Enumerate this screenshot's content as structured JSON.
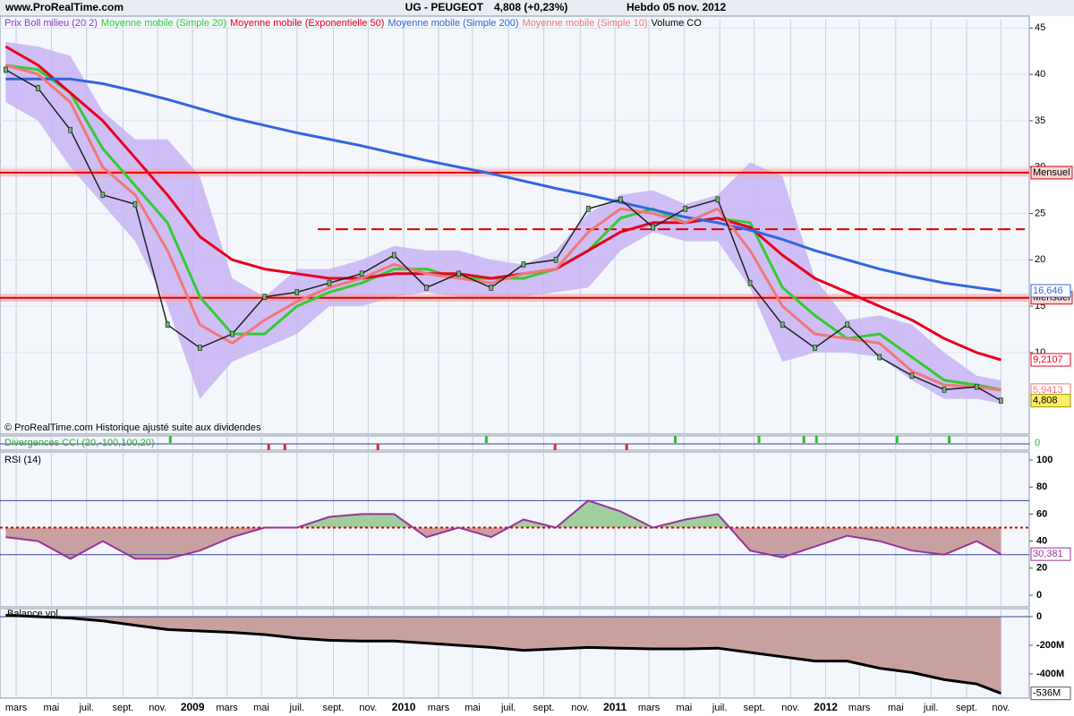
{
  "header": {
    "site": "www.ProRealTime.com",
    "symbol": "UG - PEUGEOT",
    "quote": "4,808 (+0,23%)",
    "period": "Hebdo  05 nov. 2012"
  },
  "chart_data": [
    {
      "type": "line",
      "x": [
        6,
        14,
        22,
        30,
        38,
        46,
        54,
        62,
        70,
        78,
        86,
        94,
        102,
        110,
        118,
        126,
        134,
        142,
        150,
        158,
        166,
        174,
        182,
        190,
        198,
        206,
        214,
        222,
        230,
        238,
        246,
        252
      ],
      "xlim": [
        4.6,
        259
      ],
      "xticks": [
        {
          "value": 8.6,
          "label": "mars"
        },
        {
          "value": 17.3,
          "label": "mai"
        },
        {
          "value": 26,
          "label": "juil."
        },
        {
          "value": 35,
          "label": "sept."
        },
        {
          "value": 43.6,
          "label": "nov."
        },
        {
          "value": 52.2,
          "label": "2009"
        },
        {
          "value": 60.7,
          "label": "mars"
        },
        {
          "value": 69.2,
          "label": "mai"
        },
        {
          "value": 78,
          "label": "juil."
        },
        {
          "value": 87,
          "label": "sept."
        },
        {
          "value": 95.6,
          "label": "nov."
        },
        {
          "value": 104.4,
          "label": "2010"
        },
        {
          "value": 113,
          "label": "mars"
        },
        {
          "value": 121.4,
          "label": "mai"
        },
        {
          "value": 130.3,
          "label": "juil."
        },
        {
          "value": 139,
          "label": "sept."
        },
        {
          "value": 148,
          "label": "nov."
        },
        {
          "value": 156.6,
          "label": "2011"
        },
        {
          "value": 165,
          "label": "mars"
        },
        {
          "value": 173.7,
          "label": "mai"
        },
        {
          "value": 182.5,
          "label": "juil."
        },
        {
          "value": 191,
          "label": "sept."
        },
        {
          "value": 200,
          "label": "nov."
        },
        {
          "value": 208.7,
          "label": "2012"
        },
        {
          "value": 217,
          "label": "mars"
        },
        {
          "value": 226,
          "label": "mai"
        },
        {
          "value": 234.7,
          "label": "juil."
        },
        {
          "value": 243.5,
          "label": "sept."
        },
        {
          "value": 252,
          "label": "nov."
        }
      ],
      "ylim": [
        1.2,
        45.9
      ],
      "yticks": [
        10,
        15,
        20,
        25,
        30,
        35,
        40,
        45
      ],
      "grid": true,
      "close": {
        "color": "#222222",
        "last_label": "4,808",
        "values": [
          40.5,
          38.5,
          34,
          27,
          26,
          13,
          10.5,
          12,
          16,
          16.5,
          17.5,
          18.5,
          20.5,
          17,
          18.5,
          17,
          19.5,
          20,
          25.5,
          26.5,
          23.5,
          25.5,
          26.5,
          17.5,
          13,
          10.5,
          13,
          9.5,
          7.5,
          6,
          6.3,
          4.808
        ]
      },
      "series": [
        {
          "name": "Prix Boll milieu (20 2)",
          "color": "#9933cc",
          "band_color": "#c8b4f4",
          "values": [
            41,
            40.5,
            38,
            32,
            28,
            24,
            16,
            12,
            12,
            15,
            16.5,
            17.5,
            19,
            19,
            18,
            18,
            18,
            19,
            21,
            24.5,
            25.5,
            24,
            24.5,
            24,
            17,
            14,
            11.5,
            12,
            9.5,
            7,
            6.5,
            6
          ],
          "upper": [
            43.5,
            43,
            42,
            36,
            33,
            33,
            29,
            18,
            16,
            19,
            19,
            20,
            21.5,
            21,
            21,
            20,
            19.5,
            21,
            25,
            27,
            27.5,
            26,
            27,
            30.5,
            29,
            18,
            13.5,
            14,
            13,
            10,
            7.5,
            7
          ],
          "lower": [
            37,
            35,
            30,
            26,
            22,
            15,
            5,
            9,
            10.5,
            12,
            15,
            15,
            16,
            16.5,
            16,
            16,
            16,
            16.5,
            17,
            21,
            23,
            22,
            22,
            17,
            9,
            10,
            10,
            9.5,
            7,
            5,
            5,
            4.5
          ]
        },
        {
          "name": "Moyenne mobile (Simple 20)",
          "color": "#33cc33",
          "values": [
            41,
            40.5,
            38,
            32,
            28,
            24,
            16,
            12,
            12,
            15,
            16.5,
            17.5,
            19,
            19,
            18,
            18,
            18,
            19,
            21,
            24.5,
            25.5,
            24,
            24.5,
            24,
            17,
            14,
            11.5,
            12,
            9.5,
            7,
            6.5,
            6
          ]
        },
        {
          "name": "Moyenne mobile (Exponentielle 50)",
          "color": "#e8001c",
          "last_label": "9,2107",
          "values": [
            43,
            41,
            38,
            35,
            31,
            27,
            22.5,
            20,
            19,
            18.5,
            18,
            18,
            18.5,
            18.5,
            18.5,
            18,
            18.5,
            19,
            21,
            23,
            24,
            24,
            24.5,
            23.5,
            20.5,
            18,
            16.5,
            15,
            13.5,
            11.5,
            10,
            9.2107
          ]
        },
        {
          "name": "Moyenne mobile (Simple 200)",
          "color": "#3366dd",
          "last_label": "16,646",
          "values": [
            39.5,
            39.5,
            39.5,
            39,
            38.2,
            37.3,
            36.3,
            35.3,
            34.5,
            33.7,
            33,
            32.3,
            31.5,
            30.7,
            30,
            29.3,
            28.5,
            27.7,
            27,
            26.2,
            25.4,
            24.6,
            24,
            23.2,
            22.2,
            21,
            20,
            19,
            18.2,
            17.5,
            17,
            16.646
          ]
        },
        {
          "name": "Moyenne mobile (Simple 10)",
          "color": "#f07878",
          "last_label": "5,9413",
          "values": [
            41,
            40,
            37,
            30,
            27,
            21,
            13,
            11,
            13.5,
            15.5,
            17,
            18,
            19.5,
            18.5,
            18,
            17.5,
            18.5,
            19,
            23,
            25.5,
            25,
            24,
            25.5,
            21,
            15,
            12,
            11.5,
            11,
            8,
            6.5,
            6.3,
            5.9413
          ]
        }
      ],
      "extra_legend": "Volume CO",
      "levels": [
        {
          "value": 29.4,
          "label": "Mensuel"
        },
        {
          "value": 15.9,
          "label": "Mensuel"
        }
      ],
      "dashed_levels": [
        23.3
      ],
      "note": "© ProRealTime.com Historique ajusté suite aux dividendes"
    },
    {
      "type": "signals",
      "title": "Divergences CCI (20,-100,100,20)",
      "bullish": [
        46.7,
        124.8,
        171.5,
        192.2,
        203.3,
        206.4,
        226.3,
        239.2
      ],
      "bull_color": "#33bb33",
      "bearish": [
        71,
        75,
        98,
        141.8,
        159.5
      ],
      "bear_color": "#cc3333",
      "level": 0
    },
    {
      "type": "line",
      "title": "RSI (14)",
      "color": "#993399",
      "ylim": [
        -8.6,
        106
      ],
      "yticks": [
        0,
        20,
        40,
        60,
        80,
        100
      ],
      "bands": [
        30,
        70
      ],
      "midline": 50,
      "above_color": "#9fcf9f",
      "below_color": "#c9a0a0",
      "last_label": "30,381",
      "values": [
        43,
        40,
        27,
        40,
        27,
        27,
        33,
        43,
        50,
        50,
        58,
        60,
        60,
        43,
        50,
        43,
        56,
        50,
        70,
        62,
        50,
        56,
        60,
        33,
        28,
        36,
        44,
        40,
        33,
        30,
        40,
        30.381
      ]
    },
    {
      "type": "area",
      "title": "Balance vol.",
      "color": "#000000",
      "fill": "#c9a0a0",
      "ylim": [
        -569,
        56
      ],
      "yticks": [
        0,
        {
          "value": -200,
          "label": "-200M"
        },
        {
          "value": -400,
          "label": "-400M"
        }
      ],
      "last_label": "-536M",
      "values": [
        10,
        0,
        -10,
        -30,
        -60,
        -90,
        -100,
        -110,
        -125,
        -150,
        -165,
        -170,
        -170,
        -185,
        -200,
        -215,
        -235,
        -225,
        -215,
        -220,
        -225,
        -225,
        -220,
        -250,
        -280,
        -310,
        -310,
        -360,
        -390,
        -440,
        -470,
        -536
      ]
    }
  ]
}
